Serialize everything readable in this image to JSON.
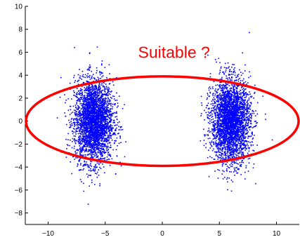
{
  "chart_data": {
    "type": "scatter",
    "title": "",
    "xlabel": "",
    "ylabel": "",
    "xlim": [
      -12,
      12
    ],
    "ylim": [
      -9,
      10
    ],
    "xticks": [
      -10,
      -5,
      0,
      5,
      10
    ],
    "yticks": [
      -8,
      -6,
      -4,
      -2,
      0,
      2,
      4,
      6,
      8,
      10
    ],
    "xtick_labels": [
      "−10",
      "−5",
      "0",
      "5",
      "10"
    ],
    "ytick_labels": [
      "−8",
      "−6",
      "−4",
      "−2",
      "0",
      "2",
      "4",
      "6",
      "8",
      "10"
    ],
    "grid": false,
    "marker_color": "#0000ff",
    "clusters": [
      {
        "center_x": -6,
        "center_y": 0,
        "std_x": 0.85,
        "std_y": 1.8
      },
      {
        "center_x": 6,
        "center_y": 0,
        "std_x": 0.85,
        "std_y": 1.8
      }
    ],
    "annotation": {
      "text": "Suitable ?",
      "x": -2,
      "y": 6,
      "color": "#ff0000"
    },
    "ellipse": {
      "center_x": 0,
      "center_y": 0,
      "radius_x": 12,
      "radius_y": 3.9,
      "color": "#ff0000"
    }
  }
}
